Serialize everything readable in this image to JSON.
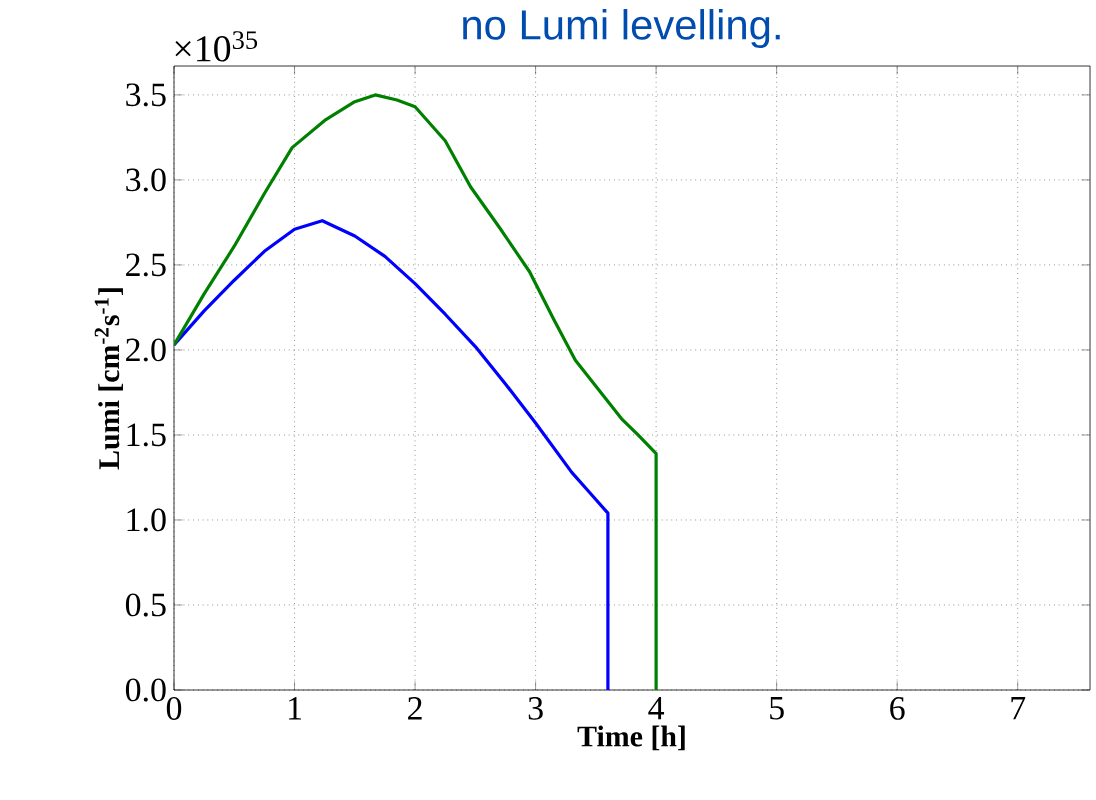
{
  "chart_data": {
    "type": "line",
    "title": "no Lumi levelling.",
    "xlabel": "Time [h]",
    "ylabel": "Lumi [cm$^{-2}$s$^{-1}$]",
    "annotations": [
      "×10$^{35}$"
    ],
    "series": [
      {
        "color": "#0000ff",
        "x": [
          0,
          0.25,
          0.5,
          0.75,
          1.0,
          1.23,
          1.5,
          1.75,
          2.0,
          2.25,
          2.5,
          2.75,
          3.0,
          3.3,
          3.45,
          3.6,
          3.6
        ],
        "values": [
          2.03,
          2.23,
          2.41,
          2.58,
          2.71,
          2.76,
          2.67,
          2.55,
          2.39,
          2.21,
          2.02,
          1.8,
          1.57,
          1.28,
          1.16,
          1.04,
          0
        ]
      },
      {
        "color": "#008000",
        "x": [
          0,
          0.25,
          0.5,
          0.75,
          0.98,
          1.25,
          1.5,
          1.67,
          1.85,
          2.0,
          2.25,
          2.46,
          2.7,
          2.95,
          3.15,
          3.33,
          3.72,
          3.85,
          4.0,
          4.0
        ],
        "values": [
          2.03,
          2.33,
          2.61,
          2.92,
          3.19,
          3.35,
          3.46,
          3.5,
          3.47,
          3.43,
          3.23,
          2.96,
          2.72,
          2.46,
          2.18,
          1.94,
          1.59,
          1.5,
          1.39,
          0
        ]
      }
    ],
    "xlim": [
      0,
      7.6
    ],
    "ylim": [
      0,
      3.67
    ],
    "xticks": [
      0,
      1,
      2,
      3,
      4,
      5,
      6,
      7
    ],
    "yticks": [
      {
        "value": 0,
        "label": "0.0"
      },
      0.5,
      {
        "value": 1,
        "label": "1.0"
      },
      1.5,
      {
        "value": 2,
        "label": "2.0"
      },
      2.5,
      {
        "value": 3,
        "label": "3.0"
      },
      3.5
    ],
    "grid": true,
    "marker": "none",
    "line_style": "solid"
  }
}
